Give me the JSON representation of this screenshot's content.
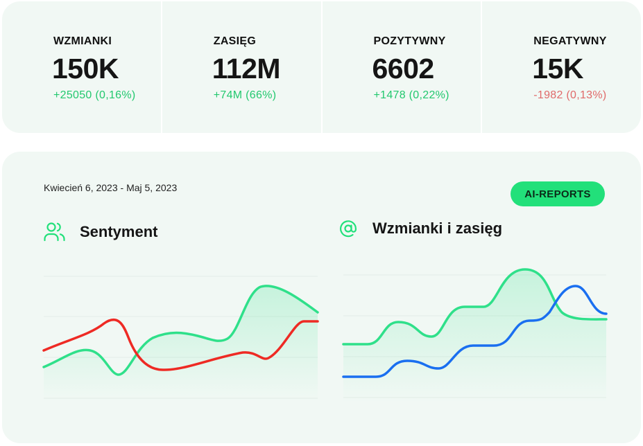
{
  "stats": [
    {
      "label": "WZMIANKI",
      "value": "150K",
      "delta": "+25050 (0,16%)",
      "trend": "up"
    },
    {
      "label": "ZASIĘG",
      "value": "112M",
      "delta": "+74M (66%)",
      "trend": "up"
    },
    {
      "label": "POZYTYWNY",
      "value": "6602",
      "delta": "+1478 (0,22%)",
      "trend": "up"
    },
    {
      "label": "NEGATYWNY",
      "value": "15K",
      "delta": "-1982 (0,13%)",
      "trend": "down"
    }
  ],
  "date_range": "Kwiecień 6, 2023 - Maj 5, 2023",
  "ai_button_label": "AI-REPORTS",
  "sentiment": {
    "title": "Sentyment",
    "icon": "users-icon"
  },
  "mentions": {
    "title": "Wzmianki i zasięg",
    "icon": "at-sign-icon"
  },
  "colors": {
    "positive": "#22c86e",
    "negative": "#e06a6a",
    "accent": "#22e07a",
    "green_line": "#2fe08a",
    "red_line": "#ee2a24",
    "blue_line": "#1a6ff0",
    "card_bg": "#f1f8f4"
  }
}
